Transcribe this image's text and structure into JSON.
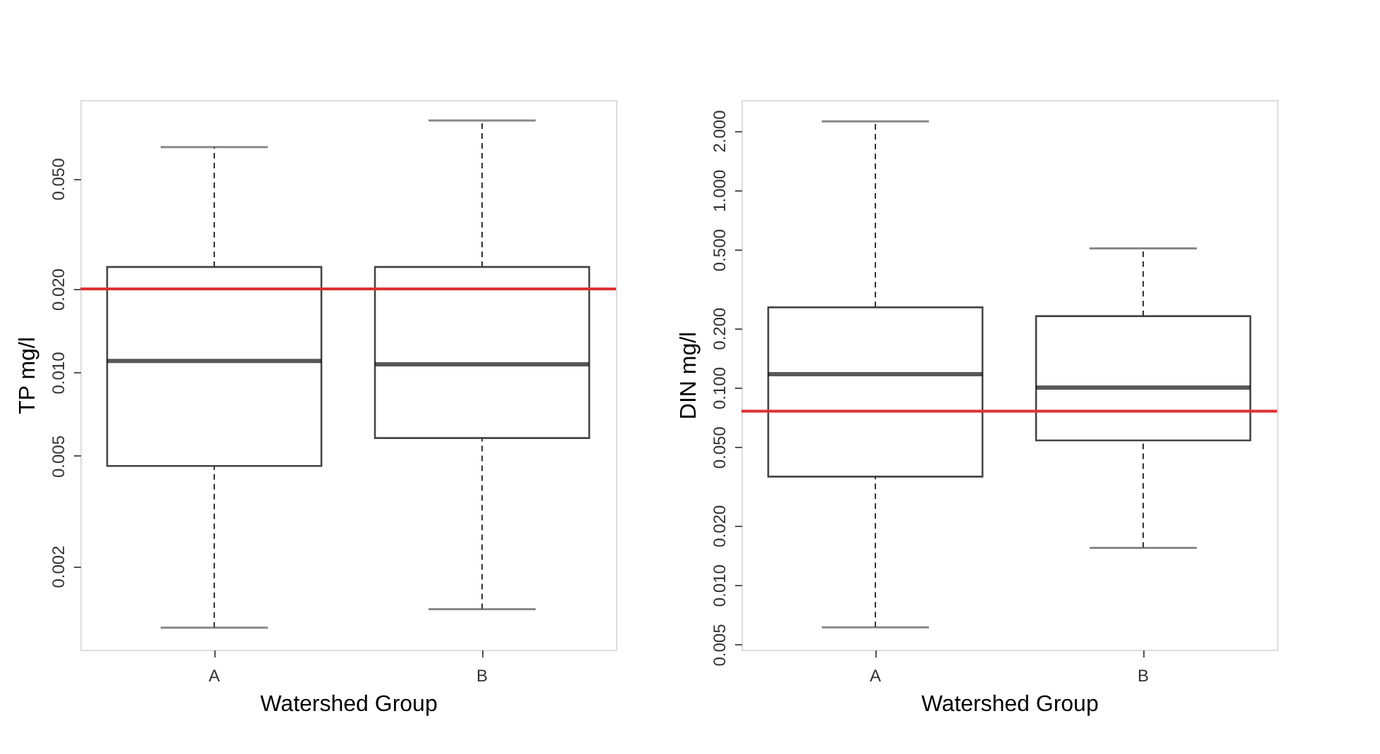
{
  "chart_data": [
    {
      "type": "box",
      "xlabel": "Watershed Group",
      "ylabel": "TP mg/l",
      "categories": [
        "A",
        "B"
      ],
      "boxes": [
        {
          "low": 0.0012,
          "q1": 0.0046,
          "median": 0.011,
          "q3": 0.024,
          "high": 0.065
        },
        {
          "low": 0.0014,
          "q1": 0.0058,
          "median": 0.0107,
          "q3": 0.024,
          "high": 0.081
        }
      ],
      "log": "y",
      "ylim": [
        0.001,
        0.096
      ],
      "yticks": [
        {
          "value": 0.002,
          "label": "0.002"
        },
        {
          "value": 0.005,
          "label": "0.005"
        },
        {
          "value": 0.01,
          "label": "0.010"
        },
        {
          "value": 0.02,
          "label": "0.020"
        },
        {
          "value": 0.05,
          "label": "0.050"
        }
      ],
      "ref_lines": [
        {
          "axis": "y",
          "value": 0.02,
          "color": "#e03030"
        }
      ],
      "grid": false
    },
    {
      "type": "box",
      "xlabel": "Watershed Group",
      "ylabel": "DIN mg/l",
      "categories": [
        "A",
        "B"
      ],
      "boxes": [
        {
          "low": 0.0061,
          "q1": 0.0354,
          "median": 0.117,
          "q3": 0.255,
          "high": 2.23
        },
        {
          "low": 0.0154,
          "q1": 0.054,
          "median": 0.1,
          "q3": 0.23,
          "high": 0.507
        }
      ],
      "log": "y",
      "ylim": [
        0.0047,
        2.86
      ],
      "yticks": [
        {
          "value": 0.005,
          "label": "0.005"
        },
        {
          "value": 0.01,
          "label": "0.010"
        },
        {
          "value": 0.02,
          "label": "0.020"
        },
        {
          "value": 0.05,
          "label": "0.050"
        },
        {
          "value": 0.1,
          "label": "0.100"
        },
        {
          "value": 0.2,
          "label": "0.200"
        },
        {
          "value": 0.5,
          "label": "0.500"
        },
        {
          "value": 1,
          "label": "1.000"
        },
        {
          "value": 2,
          "label": "2.000"
        }
      ],
      "ref_lines": [
        {
          "axis": "y",
          "value": 0.076,
          "color": "#e03030"
        }
      ],
      "grid": false
    }
  ]
}
